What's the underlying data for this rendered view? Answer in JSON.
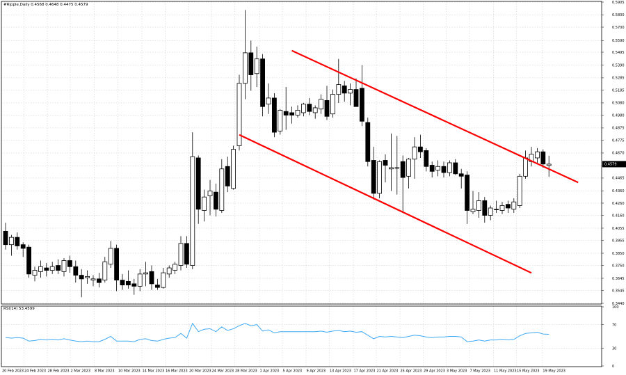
{
  "header": {
    "main_title": "#Ripple,Daily  0.4568 0.4648 0.4475 0.4579",
    "rsi_title": "RSI(14) 53.4599"
  },
  "colors": {
    "grid": "#c8c8c8",
    "frame": "#000000",
    "candle": "#000000",
    "channel": "#ff0000",
    "rsi": "#3fa9f5",
    "price_label_bg": "#000000",
    "price_label_text": "#ffffff"
  },
  "chart_data": [
    {
      "type": "candlestick",
      "title": "#Ripple,Daily  0.4568 0.4648 0.4475 0.4579",
      "ylim": [
        0.344,
        0.5905
      ],
      "y_ticks": [
        "0.5905",
        "0.5800",
        "0.5700",
        "0.5590",
        "0.5495",
        "0.5390",
        "0.5285",
        "0.5185",
        "0.5080",
        "0.4980",
        "0.4875",
        "0.4775",
        "0.4670",
        "0.4565",
        "0.4465",
        "0.4360",
        "0.4260",
        "0.4160",
        "0.4055",
        "0.3955",
        "0.3850",
        "0.3750",
        "0.3645",
        "0.3545",
        "0.3440"
      ],
      "x_ticks": [
        "20 Feb 2023",
        "24 Feb 2023",
        "28 Feb 2023",
        "2 Mar 2023",
        "8 Mar 2023",
        "10 Mar 2023",
        "14 Mar 2023",
        "16 Mar 2023",
        "20 Mar 2023",
        "24 Mar 2023",
        "28 Mar 2023",
        "1 Apr 2023",
        "5 Apr 2023",
        "9 Apr 2023",
        "13 Apr 2023",
        "17 Apr 2023",
        "21 Apr 2023",
        "25 Apr 2023",
        "29 Apr 2023",
        "3 May 2023",
        "7 May 2023",
        "11 May 2023",
        "15 May 2023",
        "19 May 2023"
      ],
      "current_price": "0.4579",
      "candles": [
        {
          "o": 0.403,
          "h": 0.41,
          "l": 0.388,
          "c": 0.392
        },
        {
          "o": 0.392,
          "h": 0.4,
          "l": 0.383,
          "c": 0.398
        },
        {
          "o": 0.398,
          "h": 0.402,
          "l": 0.388,
          "c": 0.391
        },
        {
          "o": 0.392,
          "h": 0.394,
          "l": 0.382,
          "c": 0.389
        },
        {
          "o": 0.39,
          "h": 0.392,
          "l": 0.365,
          "c": 0.368
        },
        {
          "o": 0.367,
          "h": 0.374,
          "l": 0.362,
          "c": 0.371
        },
        {
          "o": 0.37,
          "h": 0.379,
          "l": 0.365,
          "c": 0.374
        },
        {
          "o": 0.373,
          "h": 0.377,
          "l": 0.366,
          "c": 0.371
        },
        {
          "o": 0.371,
          "h": 0.378,
          "l": 0.368,
          "c": 0.374
        },
        {
          "o": 0.375,
          "h": 0.38,
          "l": 0.368,
          "c": 0.371
        },
        {
          "o": 0.37,
          "h": 0.381,
          "l": 0.366,
          "c": 0.379
        },
        {
          "o": 0.379,
          "h": 0.383,
          "l": 0.369,
          "c": 0.374
        },
        {
          "o": 0.374,
          "h": 0.379,
          "l": 0.361,
          "c": 0.367
        },
        {
          "o": 0.367,
          "h": 0.372,
          "l": 0.349,
          "c": 0.364
        },
        {
          "o": 0.365,
          "h": 0.371,
          "l": 0.36,
          "c": 0.366
        },
        {
          "o": 0.363,
          "h": 0.367,
          "l": 0.358,
          "c": 0.364
        },
        {
          "o": 0.364,
          "h": 0.369,
          "l": 0.357,
          "c": 0.361
        },
        {
          "o": 0.363,
          "h": 0.382,
          "l": 0.361,
          "c": 0.378
        },
        {
          "o": 0.376,
          "h": 0.395,
          "l": 0.373,
          "c": 0.389
        },
        {
          "o": 0.389,
          "h": 0.392,
          "l": 0.354,
          "c": 0.363
        },
        {
          "o": 0.363,
          "h": 0.368,
          "l": 0.355,
          "c": 0.359
        },
        {
          "o": 0.362,
          "h": 0.371,
          "l": 0.356,
          "c": 0.359
        },
        {
          "o": 0.36,
          "h": 0.364,
          "l": 0.351,
          "c": 0.358
        },
        {
          "o": 0.358,
          "h": 0.372,
          "l": 0.354,
          "c": 0.368
        },
        {
          "o": 0.368,
          "h": 0.378,
          "l": 0.358,
          "c": 0.369
        },
        {
          "o": 0.37,
          "h": 0.375,
          "l": 0.355,
          "c": 0.36
        },
        {
          "o": 0.359,
          "h": 0.364,
          "l": 0.355,
          "c": 0.357
        },
        {
          "o": 0.357,
          "h": 0.373,
          "l": 0.356,
          "c": 0.369
        },
        {
          "o": 0.368,
          "h": 0.375,
          "l": 0.365,
          "c": 0.373
        },
        {
          "o": 0.371,
          "h": 0.378,
          "l": 0.368,
          "c": 0.376
        },
        {
          "o": 0.375,
          "h": 0.399,
          "l": 0.371,
          "c": 0.393
        },
        {
          "o": 0.393,
          "h": 0.399,
          "l": 0.373,
          "c": 0.376
        },
        {
          "o": 0.375,
          "h": 0.484,
          "l": 0.372,
          "c": 0.464
        },
        {
          "o": 0.463,
          "h": 0.465,
          "l": 0.409,
          "c": 0.421
        },
        {
          "o": 0.42,
          "h": 0.437,
          "l": 0.411,
          "c": 0.431
        },
        {
          "o": 0.432,
          "h": 0.445,
          "l": 0.416,
          "c": 0.436
        },
        {
          "o": 0.435,
          "h": 0.442,
          "l": 0.415,
          "c": 0.421
        },
        {
          "o": 0.42,
          "h": 0.462,
          "l": 0.418,
          "c": 0.454
        },
        {
          "o": 0.456,
          "h": 0.464,
          "l": 0.435,
          "c": 0.44
        },
        {
          "o": 0.438,
          "h": 0.473,
          "l": 0.437,
          "c": 0.47
        },
        {
          "o": 0.473,
          "h": 0.531,
          "l": 0.469,
          "c": 0.524
        },
        {
          "o": 0.524,
          "h": 0.584,
          "l": 0.511,
          "c": 0.549
        },
        {
          "o": 0.549,
          "h": 0.559,
          "l": 0.518,
          "c": 0.531
        },
        {
          "o": 0.532,
          "h": 0.554,
          "l": 0.521,
          "c": 0.544
        },
        {
          "o": 0.544,
          "h": 0.548,
          "l": 0.497,
          "c": 0.505
        },
        {
          "o": 0.507,
          "h": 0.524,
          "l": 0.499,
          "c": 0.512
        },
        {
          "o": 0.512,
          "h": 0.516,
          "l": 0.48,
          "c": 0.484
        },
        {
          "o": 0.485,
          "h": 0.503,
          "l": 0.482,
          "c": 0.502
        },
        {
          "o": 0.501,
          "h": 0.521,
          "l": 0.486,
          "c": 0.498
        },
        {
          "o": 0.5,
          "h": 0.505,
          "l": 0.491,
          "c": 0.498
        },
        {
          "o": 0.498,
          "h": 0.506,
          "l": 0.496,
          "c": 0.502
        },
        {
          "o": 0.5,
          "h": 0.508,
          "l": 0.497,
          "c": 0.507
        },
        {
          "o": 0.507,
          "h": 0.512,
          "l": 0.498,
          "c": 0.501
        },
        {
          "o": 0.5,
          "h": 0.506,
          "l": 0.495,
          "c": 0.504
        },
        {
          "o": 0.503,
          "h": 0.515,
          "l": 0.499,
          "c": 0.511
        },
        {
          "o": 0.51,
          "h": 0.522,
          "l": 0.494,
          "c": 0.497
        },
        {
          "o": 0.499,
          "h": 0.519,
          "l": 0.496,
          "c": 0.515
        },
        {
          "o": 0.515,
          "h": 0.544,
          "l": 0.508,
          "c": 0.523
        },
        {
          "o": 0.522,
          "h": 0.526,
          "l": 0.509,
          "c": 0.516
        },
        {
          "o": 0.516,
          "h": 0.524,
          "l": 0.506,
          "c": 0.519
        },
        {
          "o": 0.519,
          "h": 0.528,
          "l": 0.505,
          "c": 0.505
        },
        {
          "o": 0.52,
          "h": 0.539,
          "l": 0.489,
          "c": 0.493
        },
        {
          "o": 0.492,
          "h": 0.496,
          "l": 0.456,
          "c": 0.46
        },
        {
          "o": 0.461,
          "h": 0.472,
          "l": 0.429,
          "c": 0.434
        },
        {
          "o": 0.434,
          "h": 0.461,
          "l": 0.43,
          "c": 0.46
        },
        {
          "o": 0.461,
          "h": 0.466,
          "l": 0.443,
          "c": 0.457
        },
        {
          "o": 0.454,
          "h": 0.483,
          "l": 0.436,
          "c": 0.455
        },
        {
          "o": 0.455,
          "h": 0.481,
          "l": 0.433,
          "c": 0.455
        },
        {
          "o": 0.46,
          "h": 0.465,
          "l": 0.418,
          "c": 0.447
        },
        {
          "o": 0.448,
          "h": 0.463,
          "l": 0.438,
          "c": 0.462
        },
        {
          "o": 0.462,
          "h": 0.48,
          "l": 0.446,
          "c": 0.472
        },
        {
          "o": 0.472,
          "h": 0.482,
          "l": 0.463,
          "c": 0.468
        },
        {
          "o": 0.469,
          "h": 0.471,
          "l": 0.452,
          "c": 0.456
        },
        {
          "o": 0.457,
          "h": 0.46,
          "l": 0.447,
          "c": 0.452
        },
        {
          "o": 0.453,
          "h": 0.461,
          "l": 0.448,
          "c": 0.456
        },
        {
          "o": 0.456,
          "h": 0.46,
          "l": 0.447,
          "c": 0.451
        },
        {
          "o": 0.451,
          "h": 0.461,
          "l": 0.448,
          "c": 0.459
        },
        {
          "o": 0.459,
          "h": 0.462,
          "l": 0.449,
          "c": 0.45
        },
        {
          "o": 0.45,
          "h": 0.454,
          "l": 0.438,
          "c": 0.448
        },
        {
          "o": 0.449,
          "h": 0.452,
          "l": 0.409,
          "c": 0.42
        },
        {
          "o": 0.419,
          "h": 0.436,
          "l": 0.417,
          "c": 0.421
        },
        {
          "o": 0.42,
          "h": 0.435,
          "l": 0.414,
          "c": 0.428
        },
        {
          "o": 0.428,
          "h": 0.431,
          "l": 0.41,
          "c": 0.416
        },
        {
          "o": 0.416,
          "h": 0.424,
          "l": 0.412,
          "c": 0.422
        },
        {
          "o": 0.421,
          "h": 0.428,
          "l": 0.418,
          "c": 0.421
        },
        {
          "o": 0.42,
          "h": 0.427,
          "l": 0.417,
          "c": 0.424
        },
        {
          "o": 0.425,
          "h": 0.428,
          "l": 0.418,
          "c": 0.422
        },
        {
          "o": 0.421,
          "h": 0.43,
          "l": 0.418,
          "c": 0.427
        },
        {
          "o": 0.424,
          "h": 0.45,
          "l": 0.422,
          "c": 0.448
        },
        {
          "o": 0.448,
          "h": 0.469,
          "l": 0.446,
          "c": 0.463
        },
        {
          "o": 0.46,
          "h": 0.472,
          "l": 0.456,
          "c": 0.466
        },
        {
          "o": 0.463,
          "h": 0.471,
          "l": 0.459,
          "c": 0.468
        },
        {
          "o": 0.468,
          "h": 0.47,
          "l": 0.455,
          "c": 0.458
        },
        {
          "o": 0.4568,
          "h": 0.4648,
          "l": 0.4475,
          "c": 0.4579
        }
      ],
      "channel_lines": [
        {
          "from": {
            "candle": 49,
            "price": 0.5508
          },
          "to": {
            "candle": 98,
            "price": 0.4429
          }
        },
        {
          "from": {
            "candle": 40,
            "price": 0.4819
          },
          "to": {
            "candle": 90,
            "price": 0.3689
          }
        }
      ]
    },
    {
      "type": "line",
      "title": "RSI(14) 53.4599",
      "ylim": [
        0,
        100
      ],
      "y_ticks": [
        "100",
        "70",
        "30",
        "0"
      ],
      "values": [
        48,
        47,
        48,
        47,
        42,
        43,
        45,
        44,
        45,
        44,
        46,
        44,
        42,
        41,
        42,
        41,
        41,
        45,
        50,
        42,
        42,
        42,
        41,
        45,
        46,
        43,
        42,
        45,
        47,
        48,
        55,
        47,
        72,
        58,
        62,
        63,
        58,
        66,
        60,
        63,
        68,
        72,
        68,
        70,
        59,
        61,
        56,
        58,
        58,
        58,
        58,
        58,
        58,
        58,
        59,
        57,
        59,
        60,
        58,
        59,
        57,
        58,
        52,
        46,
        50,
        49,
        50,
        49,
        48,
        50,
        52,
        51,
        49,
        48,
        49,
        49,
        50,
        50,
        49,
        41,
        42,
        44,
        42,
        44,
        44,
        45,
        44,
        45,
        51,
        55,
        56,
        57,
        54,
        53.4599
      ]
    }
  ]
}
